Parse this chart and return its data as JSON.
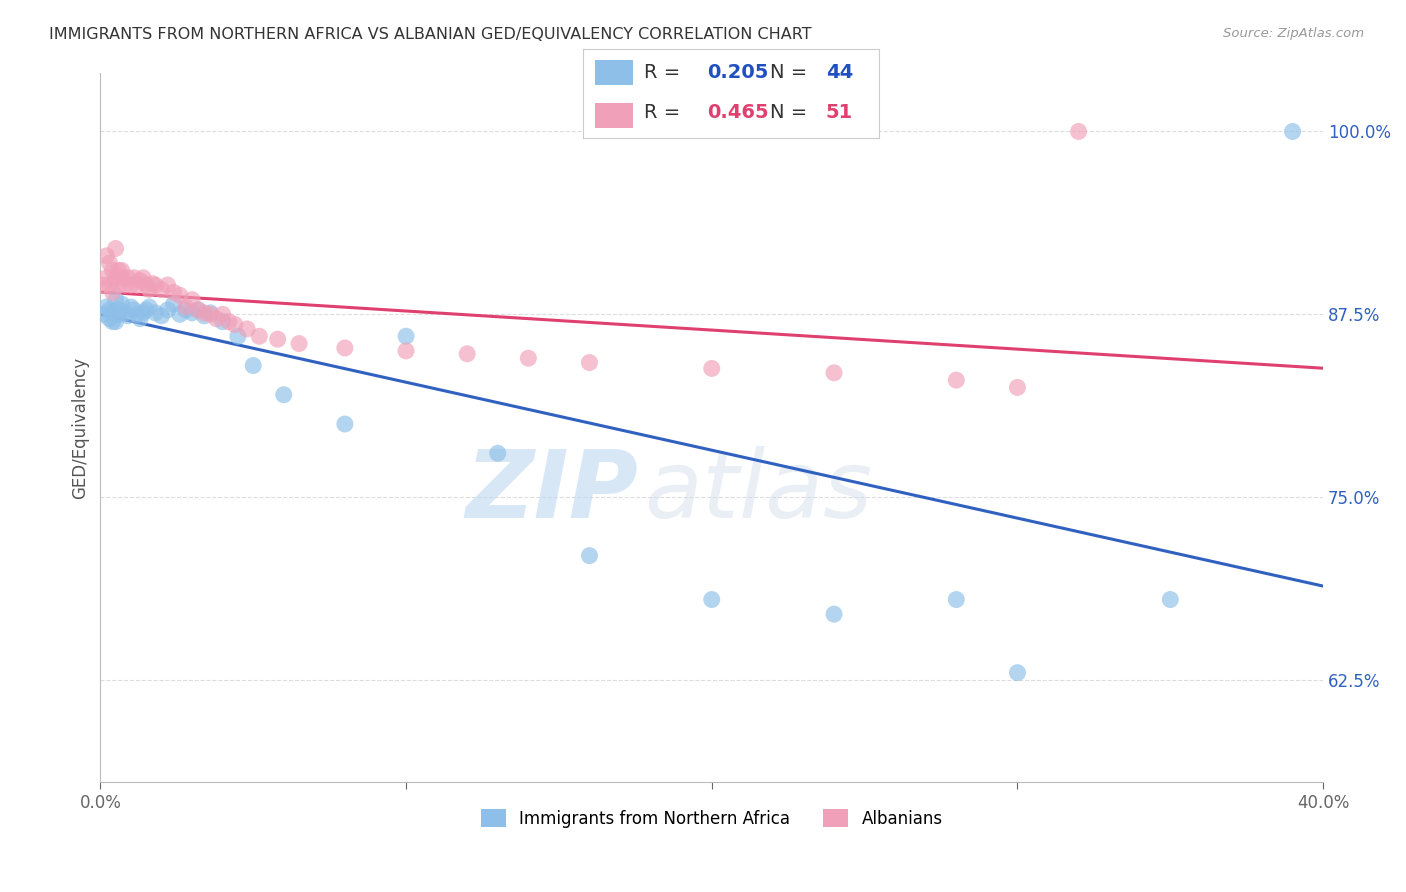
{
  "title": "IMMIGRANTS FROM NORTHERN AFRICA VS ALBANIAN GED/EQUIVALENCY CORRELATION CHART",
  "source": "Source: ZipAtlas.com",
  "ylabel": "GED/Equivalency",
  "y_ticks": [
    0.625,
    0.75,
    0.875,
    1.0
  ],
  "y_tick_labels": [
    "62.5%",
    "75.0%",
    "87.5%",
    "100.0%"
  ],
  "xlim": [
    0.0,
    0.4
  ],
  "ylim": [
    0.555,
    1.04
  ],
  "blue_R": 0.205,
  "blue_N": 44,
  "pink_R": 0.465,
  "pink_N": 51,
  "blue_label": "Immigrants from Northern Africa",
  "pink_label": "Albanians",
  "blue_color": "#8dbfe8",
  "pink_color": "#f0a0b8",
  "blue_line_color": "#3060c0",
  "pink_line_color": "#e04070",
  "legend_blue_color": "#2050c0",
  "legend_pink_color": "#e04070",
  "blue_x": [
    0.001,
    0.002,
    0.003,
    0.003,
    0.004,
    0.004,
    0.005,
    0.005,
    0.006,
    0.006,
    0.007,
    0.008,
    0.009,
    0.01,
    0.011,
    0.012,
    0.013,
    0.014,
    0.015,
    0.016,
    0.018,
    0.02,
    0.022,
    0.024,
    0.026,
    0.028,
    0.03,
    0.032,
    0.034,
    0.036,
    0.04,
    0.045,
    0.05,
    0.06,
    0.08,
    0.1,
    0.13,
    0.16,
    0.2,
    0.24,
    0.28,
    0.3,
    0.35,
    0.39
  ],
  "blue_y": [
    0.875,
    0.88,
    0.878,
    0.872,
    0.876,
    0.87,
    0.885,
    0.87,
    0.878,
    0.875,
    0.882,
    0.876,
    0.874,
    0.88,
    0.878,
    0.875,
    0.872,
    0.876,
    0.878,
    0.88,
    0.876,
    0.874,
    0.878,
    0.882,
    0.875,
    0.878,
    0.876,
    0.878,
    0.874,
    0.876,
    0.87,
    0.86,
    0.84,
    0.82,
    0.8,
    0.86,
    0.78,
    0.71,
    0.68,
    0.67,
    0.68,
    0.63,
    0.68,
    1.0
  ],
  "pink_x": [
    0.001,
    0.002,
    0.002,
    0.003,
    0.003,
    0.004,
    0.004,
    0.005,
    0.005,
    0.006,
    0.006,
    0.007,
    0.007,
    0.008,
    0.009,
    0.01,
    0.011,
    0.012,
    0.013,
    0.014,
    0.015,
    0.016,
    0.017,
    0.018,
    0.02,
    0.022,
    0.024,
    0.026,
    0.028,
    0.03,
    0.032,
    0.034,
    0.036,
    0.038,
    0.04,
    0.042,
    0.044,
    0.048,
    0.052,
    0.058,
    0.065,
    0.08,
    0.1,
    0.12,
    0.14,
    0.16,
    0.2,
    0.24,
    0.28,
    0.3,
    0.32
  ],
  "pink_y": [
    0.895,
    0.915,
    0.9,
    0.91,
    0.895,
    0.905,
    0.89,
    0.92,
    0.9,
    0.905,
    0.895,
    0.9,
    0.905,
    0.895,
    0.9,
    0.895,
    0.9,
    0.895,
    0.898,
    0.9,
    0.895,
    0.892,
    0.896,
    0.895,
    0.892,
    0.895,
    0.89,
    0.888,
    0.88,
    0.885,
    0.878,
    0.876,
    0.875,
    0.872,
    0.875,
    0.87,
    0.868,
    0.865,
    0.86,
    0.858,
    0.855,
    0.852,
    0.85,
    0.848,
    0.845,
    0.842,
    0.838,
    0.835,
    0.83,
    0.825,
    1.0
  ],
  "watermark_zip": "ZIP",
  "watermark_atlas": "atlas",
  "background_color": "#ffffff",
  "grid_color": "#dddddd"
}
